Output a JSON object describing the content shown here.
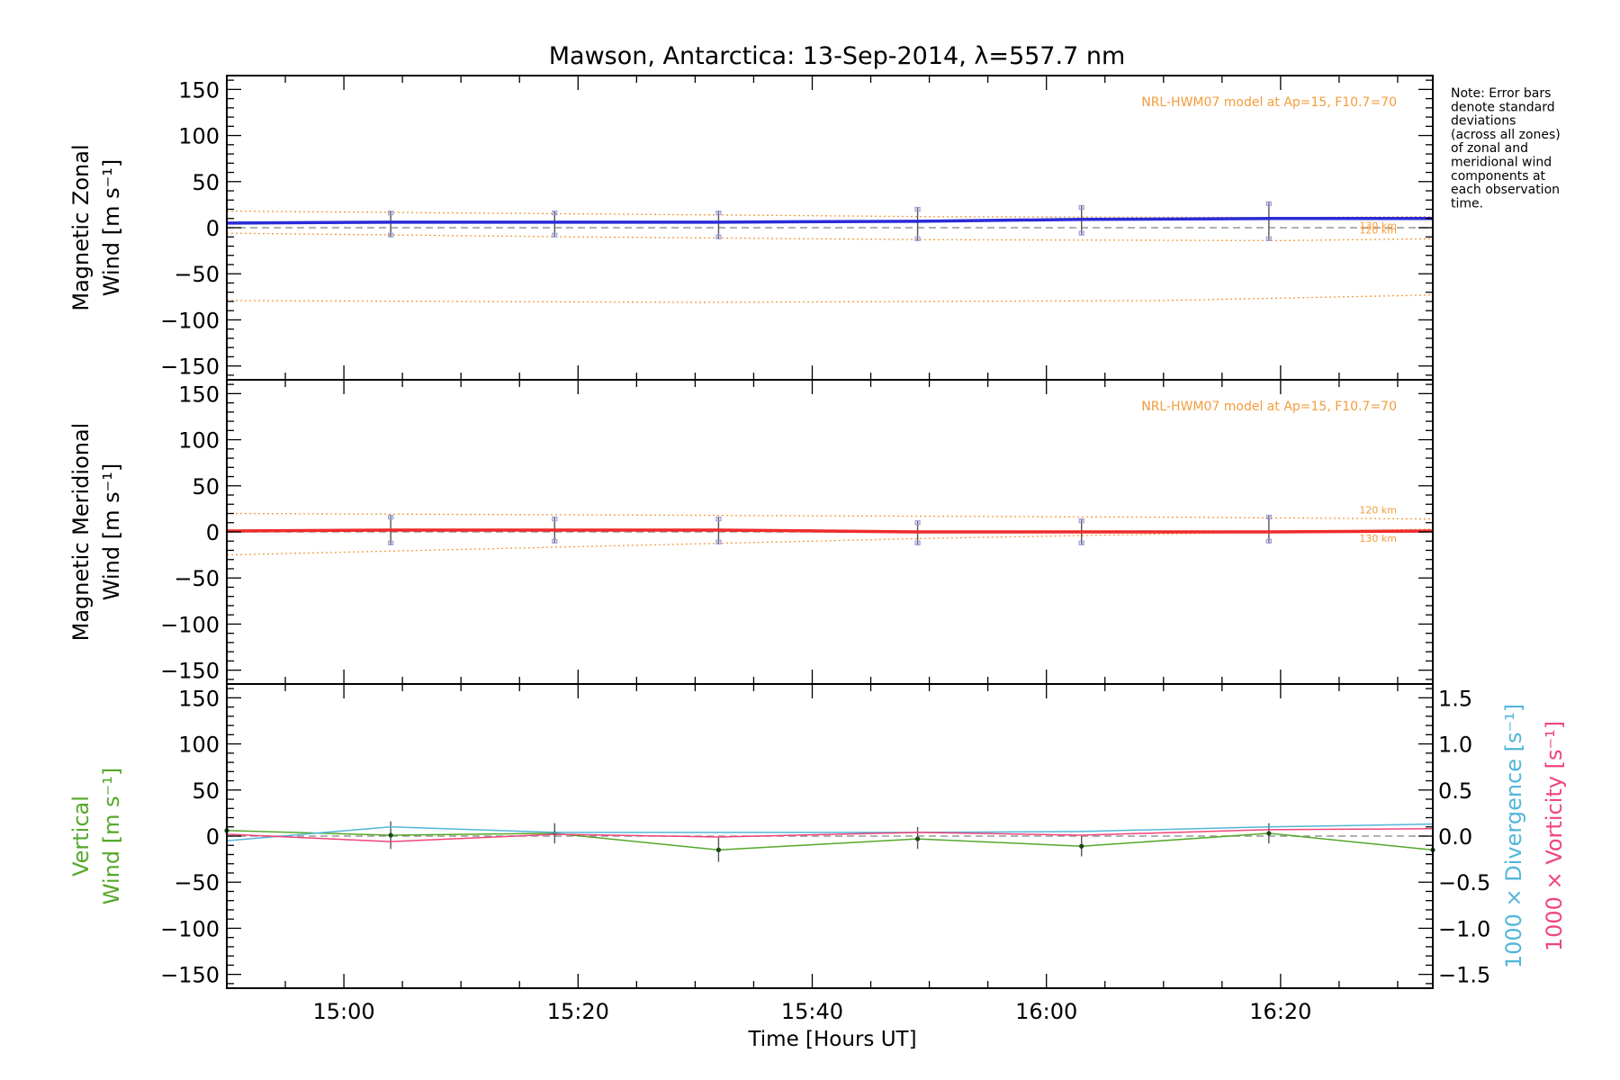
{
  "figure": {
    "title": "Mawson, Antarctica: 13-Sep-2014, λ=557.7 nm",
    "note_lines": [
      "Note: Error bars",
      "denote standard",
      "deviations",
      "(across all zones)",
      "of zonal and",
      "meridional wind",
      "components at",
      "each observation",
      "time."
    ],
    "xlabel": "Time [Hours UT]"
  },
  "colors": {
    "axes": "#000000",
    "zonal": "#2b2bd8",
    "meridional": "#ee2b2b",
    "model": "#f39c3c",
    "vertical": "#55a82b",
    "divergence": "#52b6da",
    "vorticity": "#f0457a",
    "error_bar": "#555555",
    "zone_marker": "#9b9bdc",
    "zero_line": "#999999"
  },
  "chart_data": [
    {
      "type": "line",
      "panel": "zonal",
      "ylabel_lines": [
        "Magnetic Zonal",
        "Wind [m s⁻¹]"
      ],
      "ylim": [
        -165,
        165
      ],
      "yticks": [
        150,
        100,
        50,
        0,
        -50,
        -100,
        -150
      ],
      "xlim": [
        "14:50",
        "16:33"
      ],
      "xticks": [
        "15:00",
        "15:20",
        "15:40",
        "16:00",
        "16:20"
      ],
      "model_label": "NRL-HWM07 model at Ap=15, F10.7=70",
      "model_series": [
        {
          "name": "120 km",
          "x": [
            "14:50",
            "15:20",
            "15:50",
            "16:20",
            "16:33"
          ],
          "values": [
            -6,
            -10,
            -13,
            -14,
            -12
          ]
        },
        {
          "name": "130 km",
          "x": [
            "14:50",
            "15:20",
            "15:50",
            "16:20",
            "16:33"
          ],
          "values": [
            18,
            15,
            12,
            11,
            12
          ]
        },
        {
          "name": "",
          "x": [
            "14:50",
            "15:30",
            "16:10",
            "16:33"
          ],
          "values": [
            -79,
            -81,
            -79,
            -73
          ]
        }
      ],
      "series": [
        {
          "name": "Magnetic Zonal Wind",
          "x": [
            "14:50",
            "15:04",
            "15:18",
            "15:32",
            "15:49",
            "16:03",
            "16:19",
            "16:33"
          ],
          "values": [
            5,
            6,
            6,
            6,
            7,
            9,
            10,
            10
          ]
        }
      ],
      "error_bars": {
        "x": [
          "15:04",
          "15:18",
          "15:32",
          "15:49",
          "16:03",
          "16:19"
        ],
        "low": [
          -10,
          -10,
          -12,
          -14,
          -8,
          -14
        ],
        "high": [
          18,
          18,
          18,
          22,
          24,
          28
        ]
      }
    },
    {
      "type": "line",
      "panel": "meridional",
      "ylabel_lines": [
        "Magnetic Meridional",
        "Wind [m s⁻¹]"
      ],
      "ylim": [
        -165,
        165
      ],
      "yticks": [
        150,
        100,
        50,
        0,
        -50,
        -100,
        -150
      ],
      "xlim": [
        "14:50",
        "16:33"
      ],
      "xticks": [
        "15:00",
        "15:20",
        "15:40",
        "16:00",
        "16:20"
      ],
      "model_label": "NRL-HWM07 model at Ap=15, F10.7=70",
      "model_series": [
        {
          "name": "120 km",
          "x": [
            "14:50",
            "15:30",
            "16:10",
            "16:33"
          ],
          "values": [
            20,
            18,
            16,
            14
          ]
        },
        {
          "name": "130 km",
          "x": [
            "14:50",
            "15:20",
            "15:50",
            "16:20",
            "16:33"
          ],
          "values": [
            -25,
            -16,
            -7,
            0,
            3
          ]
        }
      ],
      "series": [
        {
          "name": "Magnetic Meridional Wind",
          "x": [
            "14:50",
            "15:04",
            "15:18",
            "15:32",
            "15:49",
            "16:03",
            "16:19",
            "16:33"
          ],
          "values": [
            1,
            2,
            2,
            2,
            0,
            0,
            0,
            1
          ]
        }
      ],
      "error_bars": {
        "x": [
          "15:04",
          "15:18",
          "15:32",
          "15:49",
          "16:03",
          "16:19"
        ],
        "low": [
          -14,
          -12,
          -13,
          -14,
          -14,
          -12
        ],
        "high": [
          18,
          16,
          16,
          12,
          14,
          18
        ]
      }
    },
    {
      "type": "line",
      "panel": "vertical",
      "ylabel_lines": [
        "Vertical",
        "Wind [m s⁻¹]"
      ],
      "ylim": [
        -165,
        165
      ],
      "yticks": [
        150,
        100,
        50,
        0,
        -50,
        -100,
        -150
      ],
      "y2label_lines": [
        "1000 × Divergence [s⁻¹]",
        "1000 × Vorticity [s⁻¹]"
      ],
      "y2lim": [
        -1.65,
        1.65
      ],
      "y2ticks": [
        "1.5",
        "1.0",
        "0.5",
        "0.0",
        "-0.5",
        "-1.0",
        "-1.5"
      ],
      "y2tick_values": [
        1.5,
        1.0,
        0.5,
        0.0,
        -0.5,
        -1.0,
        -1.5
      ],
      "xlim": [
        "14:50",
        "16:33"
      ],
      "xticks": [
        "15:00",
        "15:20",
        "15:40",
        "16:00",
        "16:20"
      ],
      "series": [
        {
          "name": "Vertical Wind",
          "axis": "left",
          "x": [
            "14:50",
            "15:04",
            "15:18",
            "15:32",
            "15:49",
            "16:03",
            "16:19",
            "16:33"
          ],
          "values": [
            6,
            1,
            3,
            -15,
            -3,
            -11,
            3,
            -15
          ],
          "markers": true
        },
        {
          "name": "1000 × Divergence",
          "axis": "right",
          "x": [
            "14:50",
            "15:04",
            "15:18",
            "15:32",
            "15:49",
            "16:03",
            "16:19",
            "16:33"
          ],
          "values": [
            -0.05,
            0.1,
            0.04,
            0.04,
            0.04,
            0.05,
            0.1,
            0.13
          ]
        },
        {
          "name": "1000 × Vorticity",
          "axis": "right",
          "x": [
            "14:50",
            "15:04",
            "15:18",
            "15:32",
            "15:49",
            "16:03",
            "16:19",
            "16:33"
          ],
          "values": [
            0.02,
            -0.06,
            0.02,
            -0.01,
            0.04,
            0.01,
            0.07,
            0.08
          ]
        }
      ],
      "error_bars": {
        "x": [
          "15:04",
          "15:18",
          "15:32",
          "15:49",
          "16:03",
          "16:19"
        ],
        "low": [
          -14,
          -8,
          -28,
          -14,
          -22,
          -8
        ],
        "high": [
          16,
          14,
          -2,
          10,
          0,
          14
        ]
      }
    }
  ]
}
